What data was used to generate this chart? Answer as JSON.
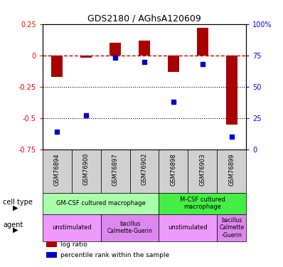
{
  "title": "GDS2180 / AGhsA120609",
  "samples": [
    "GSM76894",
    "GSM76900",
    "GSM76897",
    "GSM76902",
    "GSM76898",
    "GSM76903",
    "GSM76899"
  ],
  "log_ratio": [
    -0.17,
    -0.02,
    0.1,
    0.12,
    -0.13,
    0.22,
    -0.55
  ],
  "percentile": [
    14,
    27,
    73,
    70,
    38,
    68,
    10
  ],
  "ylim_left": [
    -0.75,
    0.25
  ],
  "ylim_right": [
    0,
    100
  ],
  "yticks_left": [
    0.25,
    0,
    -0.25,
    -0.5,
    -0.75
  ],
  "yticks_right": [
    100,
    75,
    50,
    25,
    0
  ],
  "bar_color": "#aa0000",
  "dot_color": "#0000cc",
  "dashed_line_color": "#cc0000",
  "cell_type_groups": [
    {
      "label": "GM-CSF cultured macrophage",
      "color": "#aaffaa",
      "span": [
        0,
        4
      ]
    },
    {
      "label": "M-CSF cultured\nmacrophage",
      "color": "#44ee44",
      "span": [
        4,
        7
      ]
    }
  ],
  "agent_groups": [
    {
      "label": "unstimulated",
      "span": [
        0,
        2
      ],
      "color": "#ee99ff"
    },
    {
      "label": "bacillus\nCalmette-Guerin",
      "span": [
        2,
        4
      ],
      "color": "#dd88ee"
    },
    {
      "label": "unstimulated",
      "span": [
        4,
        6
      ],
      "color": "#ee99ff"
    },
    {
      "label": "bacillus\nCalmette\n-Guerin",
      "span": [
        6,
        7
      ],
      "color": "#dd88ee"
    }
  ],
  "legend_items": [
    {
      "label": "log ratio",
      "color": "#aa0000"
    },
    {
      "label": "percentile rank within the sample",
      "color": "#0000cc"
    }
  ]
}
